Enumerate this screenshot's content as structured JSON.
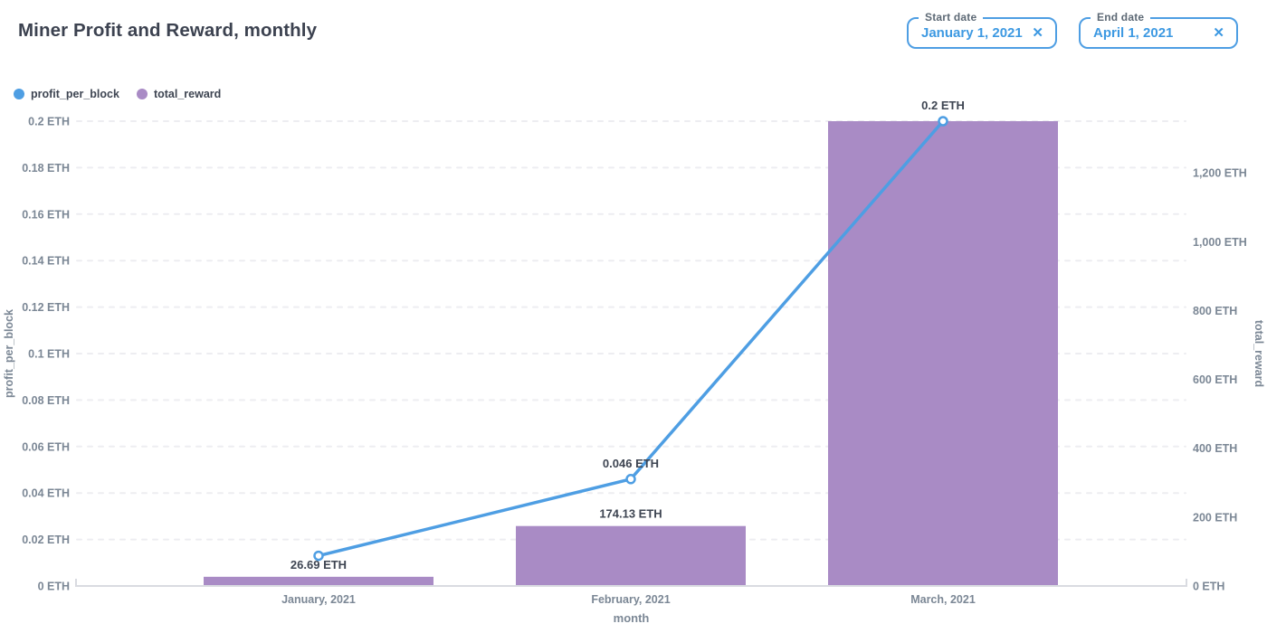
{
  "header": {
    "title": "Miner Profit and Reward, monthly",
    "filters": {
      "start": {
        "label": "Start date",
        "value": "January 1, 2021",
        "clear_icon": "✕"
      },
      "end": {
        "label": "End date",
        "value": "April 1, 2021",
        "clear_icon": "✕"
      }
    }
  },
  "legend": {
    "items": [
      {
        "label": "profit_per_block",
        "color": "#4e9ee3"
      },
      {
        "label": "total_reward",
        "color": "#a98bc5"
      }
    ]
  },
  "colors": {
    "accent_blue": "#4e9ee3",
    "bar_purple": "#a98bc5",
    "dark_text": "#3e4552",
    "axis_gray": "#7b8795",
    "gridline": "#ededf1"
  },
  "chart_data": {
    "type": "combo",
    "title": "Miner Profit and Reward, monthly",
    "categories": [
      "January, 2021",
      "February, 2021",
      "March, 2021"
    ],
    "xlabel": "month",
    "grid": "horizontal-dashed",
    "legend_position": "top-left",
    "left_axis": {
      "title": "profit_per_block",
      "unit": "ETH",
      "lim": [
        0,
        0.2
      ],
      "ticks": [
        0,
        0.02,
        0.04,
        0.06,
        0.08,
        0.1,
        0.12,
        0.14,
        0.16,
        0.18,
        0.2
      ],
      "tick_labels": [
        "0 ETH",
        "0.02 ETH",
        "0.04 ETH",
        "0.06 ETH",
        "0.08 ETH",
        "0.1 ETH",
        "0.12 ETH",
        "0.14 ETH",
        "0.16 ETH",
        "0.18 ETH",
        "0.2 ETH"
      ]
    },
    "right_axis": {
      "title": "total_reward",
      "unit": "ETH",
      "lim": [
        0,
        1350
      ],
      "ticks": [
        0,
        200,
        400,
        600,
        800,
        1000,
        1200
      ],
      "tick_labels": [
        "0 ETH",
        "200 ETH",
        "400 ETH",
        "600 ETH",
        "800 ETH",
        "1,000 ETH",
        "1,200 ETH"
      ]
    },
    "series": [
      {
        "name": "profit_per_block",
        "type": "line",
        "axis": "left",
        "color": "#4e9ee3",
        "values": [
          0.013,
          0.046,
          0.2
        ],
        "point_labels": [
          "",
          "0.046 ETH",
          "0.2 ETH"
        ]
      },
      {
        "name": "total_reward",
        "type": "bar",
        "axis": "right",
        "color": "#a98bc5",
        "values": [
          26.69,
          174.13,
          1350
        ],
        "point_labels": [
          "26.69 ETH",
          "174.13 ETH",
          ""
        ]
      }
    ]
  }
}
